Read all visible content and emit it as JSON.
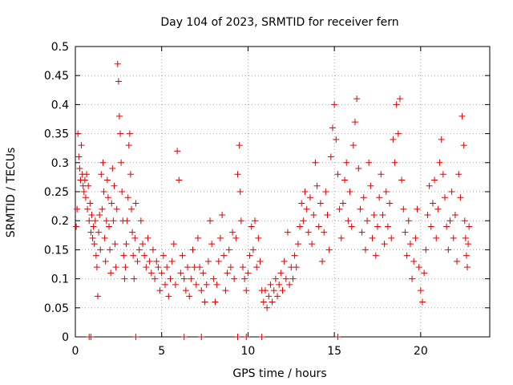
{
  "chart_data": {
    "type": "scatter",
    "title": "Day 104 of 2023, SRMTID for receiver fern",
    "xlabel": "GPS time / hours",
    "ylabel": "SRMTID / TECUs",
    "xlim": [
      0,
      24
    ],
    "ylim": [
      0,
      0.5
    ],
    "xticks": [
      "0",
      "5",
      "10",
      "15",
      "20"
    ],
    "yticks": [
      "0",
      "0.05",
      "0.1",
      "0.15",
      "0.2",
      "0.25",
      "0.3",
      "0.35",
      "0.4",
      "0.45",
      "0.5"
    ],
    "grid": true,
    "marker": "+",
    "color": "#e00000",
    "series": [
      {
        "values": [
          [
            0.05,
            0.19
          ],
          [
            0.1,
            0.22
          ],
          [
            0.15,
            0.35
          ],
          [
            0.2,
            0.31
          ],
          [
            0.25,
            0.29
          ],
          [
            0.3,
            0.27
          ],
          [
            0.35,
            0.33
          ],
          [
            0.4,
            0.28
          ],
          [
            0.45,
            0.26
          ],
          [
            0.5,
            0.25
          ],
          [
            0.55,
            0.27
          ],
          [
            0.6,
            0.24
          ],
          [
            0.65,
            0.28
          ],
          [
            0.7,
            0.22
          ],
          [
            0.75,
            0.26
          ],
          [
            0.8,
            0.2
          ],
          [
            0.85,
            0.23
          ],
          [
            0.9,
            0.18
          ],
          [
            0.95,
            0.21
          ],
          [
            1.0,
            0.17
          ],
          [
            1.05,
            0.19
          ],
          [
            1.1,
            0.16
          ],
          [
            1.15,
            0.2
          ],
          [
            1.2,
            0.14
          ],
          [
            1.25,
            0.12
          ],
          [
            1.3,
            0.07
          ],
          [
            1.35,
            0.18
          ],
          [
            1.4,
            0.21
          ],
          [
            1.45,
            0.15
          ],
          [
            1.5,
            0.28
          ],
          [
            1.55,
            0.22
          ],
          [
            1.6,
            0.3
          ],
          [
            1.65,
            0.25
          ],
          [
            1.7,
            0.17
          ],
          [
            1.75,
            0.13
          ],
          [
            1.8,
            0.2
          ],
          [
            1.85,
            0.27
          ],
          [
            1.9,
            0.24
          ],
          [
            1.95,
            0.19
          ],
          [
            2.0,
            0.15
          ],
          [
            2.05,
            0.11
          ],
          [
            2.1,
            0.23
          ],
          [
            2.15,
            0.29
          ],
          [
            2.2,
            0.2
          ],
          [
            2.25,
            0.26
          ],
          [
            2.3,
            0.16
          ],
          [
            2.35,
            0.12
          ],
          [
            2.4,
            0.22
          ],
          [
            2.45,
            0.47
          ],
          [
            2.5,
            0.44
          ],
          [
            2.55,
            0.38
          ],
          [
            2.6,
            0.35
          ],
          [
            2.65,
            0.3
          ],
          [
            2.7,
            0.25
          ],
          [
            2.75,
            0.2
          ],
          [
            2.8,
            0.14
          ],
          [
            2.85,
            0.1
          ],
          [
            2.9,
            0.12
          ],
          [
            2.95,
            0.16
          ],
          [
            3.0,
            0.2
          ],
          [
            3.05,
            0.24
          ],
          [
            3.1,
            0.33
          ],
          [
            3.15,
            0.35
          ],
          [
            3.2,
            0.28
          ],
          [
            3.25,
            0.22
          ],
          [
            3.3,
            0.18
          ],
          [
            3.35,
            0.14
          ],
          [
            3.4,
            0.1
          ],
          [
            3.45,
            0.17
          ],
          [
            3.5,
            0.23
          ],
          [
            3.6,
            0.13
          ],
          [
            3.7,
            0.15
          ],
          [
            3.8,
            0.2
          ],
          [
            3.9,
            0.16
          ],
          [
            4.0,
            0.14
          ],
          [
            4.1,
            0.12
          ],
          [
            4.2,
            0.17
          ],
          [
            4.3,
            0.13
          ],
          [
            4.4,
            0.11
          ],
          [
            4.5,
            0.15
          ],
          [
            4.6,
            0.1
          ],
          [
            4.7,
            0.13
          ],
          [
            4.8,
            0.12
          ],
          [
            4.9,
            0.08
          ],
          [
            5.0,
            0.11
          ],
          [
            5.1,
            0.14
          ],
          [
            5.2,
            0.09
          ],
          [
            5.3,
            0.12
          ],
          [
            5.4,
            0.07
          ],
          [
            5.5,
            0.1
          ],
          [
            5.6,
            0.13
          ],
          [
            5.7,
            0.16
          ],
          [
            5.8,
            0.09
          ],
          [
            5.9,
            0.32
          ],
          [
            6.0,
            0.27
          ],
          [
            6.1,
            0.11
          ],
          [
            6.2,
            0.14
          ],
          [
            6.3,
            0.1
          ],
          [
            6.4,
            0.08
          ],
          [
            6.5,
            0.12
          ],
          [
            6.6,
            0.07
          ],
          [
            6.7,
            0.1
          ],
          [
            6.8,
            0.15
          ],
          [
            6.9,
            0.12
          ],
          [
            7.0,
            0.09
          ],
          [
            7.1,
            0.17
          ],
          [
            7.2,
            0.12
          ],
          [
            7.3,
            0.08
          ],
          [
            7.4,
            0.11
          ],
          [
            7.5,
            0.06
          ],
          [
            7.6,
            0.09
          ],
          [
            7.7,
            0.13
          ],
          [
            7.8,
            0.2
          ],
          [
            7.9,
            0.16
          ],
          [
            8.0,
            0.1
          ],
          [
            8.1,
            0.06
          ],
          [
            8.2,
            0.09
          ],
          [
            8.3,
            0.13
          ],
          [
            8.4,
            0.17
          ],
          [
            8.5,
            0.21
          ],
          [
            8.6,
            0.14
          ],
          [
            8.7,
            0.08
          ],
          [
            8.8,
            0.11
          ],
          [
            8.9,
            0.15
          ],
          [
            9.0,
            0.12
          ],
          [
            9.1,
            0.18
          ],
          [
            9.2,
            0.1
          ],
          [
            9.3,
            0.17
          ],
          [
            9.4,
            0.28
          ],
          [
            9.5,
            0.33
          ],
          [
            9.55,
            0.25
          ],
          [
            9.6,
            0.2
          ],
          [
            9.7,
            0.12
          ],
          [
            9.8,
            0.1
          ],
          [
            9.9,
            0.08
          ],
          [
            10.0,
            0.11
          ],
          [
            10.1,
            0.14
          ],
          [
            10.2,
            0.19
          ],
          [
            10.3,
            0.15
          ],
          [
            10.4,
            0.2
          ],
          [
            10.5,
            0.12
          ],
          [
            10.6,
            0.17
          ],
          [
            10.7,
            0.13
          ],
          [
            10.8,
            0.08
          ],
          [
            10.9,
            0.06
          ],
          [
            11.0,
            0.08
          ],
          [
            11.1,
            0.05
          ],
          [
            11.2,
            0.07
          ],
          [
            11.3,
            0.09
          ],
          [
            11.4,
            0.06
          ],
          [
            11.5,
            0.08
          ],
          [
            11.6,
            0.1
          ],
          [
            11.7,
            0.07
          ],
          [
            11.8,
            0.09
          ],
          [
            11.9,
            0.11
          ],
          [
            12.0,
            0.08
          ],
          [
            12.1,
            0.13
          ],
          [
            12.2,
            0.1
          ],
          [
            12.3,
            0.18
          ],
          [
            12.4,
            0.09
          ],
          [
            12.5,
            0.12
          ],
          [
            12.6,
            0.1
          ],
          [
            12.7,
            0.14
          ],
          [
            12.8,
            0.12
          ],
          [
            12.9,
            0.16
          ],
          [
            13.0,
            0.19
          ],
          [
            13.1,
            0.23
          ],
          [
            13.2,
            0.2
          ],
          [
            13.3,
            0.25
          ],
          [
            13.4,
            0.22
          ],
          [
            13.5,
            0.18
          ],
          [
            13.6,
            0.24
          ],
          [
            13.7,
            0.16
          ],
          [
            13.8,
            0.21
          ],
          [
            13.9,
            0.3
          ],
          [
            14.0,
            0.26
          ],
          [
            14.1,
            0.19
          ],
          [
            14.2,
            0.23
          ],
          [
            14.3,
            0.13
          ],
          [
            14.4,
            0.18
          ],
          [
            14.5,
            0.25
          ],
          [
            14.6,
            0.21
          ],
          [
            14.7,
            0.15
          ],
          [
            14.8,
            0.31
          ],
          [
            14.9,
            0.36
          ],
          [
            15.0,
            0.4
          ],
          [
            15.1,
            0.34
          ],
          [
            15.2,
            0.28
          ],
          [
            15.3,
            0.22
          ],
          [
            15.4,
            0.17
          ],
          [
            15.5,
            0.23
          ],
          [
            15.6,
            0.27
          ],
          [
            15.7,
            0.3
          ],
          [
            15.8,
            0.2
          ],
          [
            15.9,
            0.25
          ],
          [
            16.0,
            0.19
          ],
          [
            16.1,
            0.33
          ],
          [
            16.2,
            0.37
          ],
          [
            16.3,
            0.41
          ],
          [
            16.4,
            0.29
          ],
          [
            16.5,
            0.22
          ],
          [
            16.6,
            0.18
          ],
          [
            16.7,
            0.24
          ],
          [
            16.8,
            0.15
          ],
          [
            16.9,
            0.2
          ],
          [
            17.0,
            0.3
          ],
          [
            17.1,
            0.26
          ],
          [
            17.2,
            0.17
          ],
          [
            17.3,
            0.21
          ],
          [
            17.4,
            0.14
          ],
          [
            17.5,
            0.19
          ],
          [
            17.6,
            0.24
          ],
          [
            17.7,
            0.28
          ],
          [
            17.8,
            0.21
          ],
          [
            17.9,
            0.16
          ],
          [
            18.0,
            0.25
          ],
          [
            18.1,
            0.19
          ],
          [
            18.2,
            0.23
          ],
          [
            18.3,
            0.17
          ],
          [
            18.4,
            0.34
          ],
          [
            18.5,
            0.3
          ],
          [
            18.6,
            0.4
          ],
          [
            18.7,
            0.35
          ],
          [
            18.8,
            0.41
          ],
          [
            18.9,
            0.27
          ],
          [
            19.0,
            0.22
          ],
          [
            19.1,
            0.18
          ],
          [
            19.2,
            0.14
          ],
          [
            19.3,
            0.2
          ],
          [
            19.4,
            0.16
          ],
          [
            19.5,
            0.1
          ],
          [
            19.6,
            0.13
          ],
          [
            19.7,
            0.17
          ],
          [
            19.8,
            0.22
          ],
          [
            19.9,
            0.12
          ],
          [
            20.0,
            0.08
          ],
          [
            20.1,
            0.06
          ],
          [
            20.2,
            0.11
          ],
          [
            20.3,
            0.15
          ],
          [
            20.4,
            0.21
          ],
          [
            20.5,
            0.26
          ],
          [
            20.6,
            0.19
          ],
          [
            20.7,
            0.23
          ],
          [
            20.8,
            0.27
          ],
          [
            20.9,
            0.17
          ],
          [
            21.0,
            0.22
          ],
          [
            21.1,
            0.3
          ],
          [
            21.2,
            0.34
          ],
          [
            21.3,
            0.28
          ],
          [
            21.4,
            0.24
          ],
          [
            21.5,
            0.19
          ],
          [
            21.6,
            0.15
          ],
          [
            21.7,
            0.2
          ],
          [
            21.8,
            0.25
          ],
          [
            21.9,
            0.17
          ],
          [
            22.0,
            0.21
          ],
          [
            22.1,
            0.13
          ],
          [
            22.2,
            0.28
          ],
          [
            22.3,
            0.24
          ],
          [
            22.4,
            0.38
          ],
          [
            22.5,
            0.33
          ],
          [
            22.55,
            0.2
          ],
          [
            22.6,
            0.17
          ],
          [
            22.65,
            0.14
          ],
          [
            22.7,
            0.12
          ],
          [
            22.75,
            0.16
          ],
          [
            22.8,
            0.19
          ]
        ]
      }
    ],
    "zero_markers_x": [
      0.8,
      0.9,
      3.5,
      6.3,
      7.3,
      9.4,
      9.9,
      10.8,
      15.2
    ]
  }
}
